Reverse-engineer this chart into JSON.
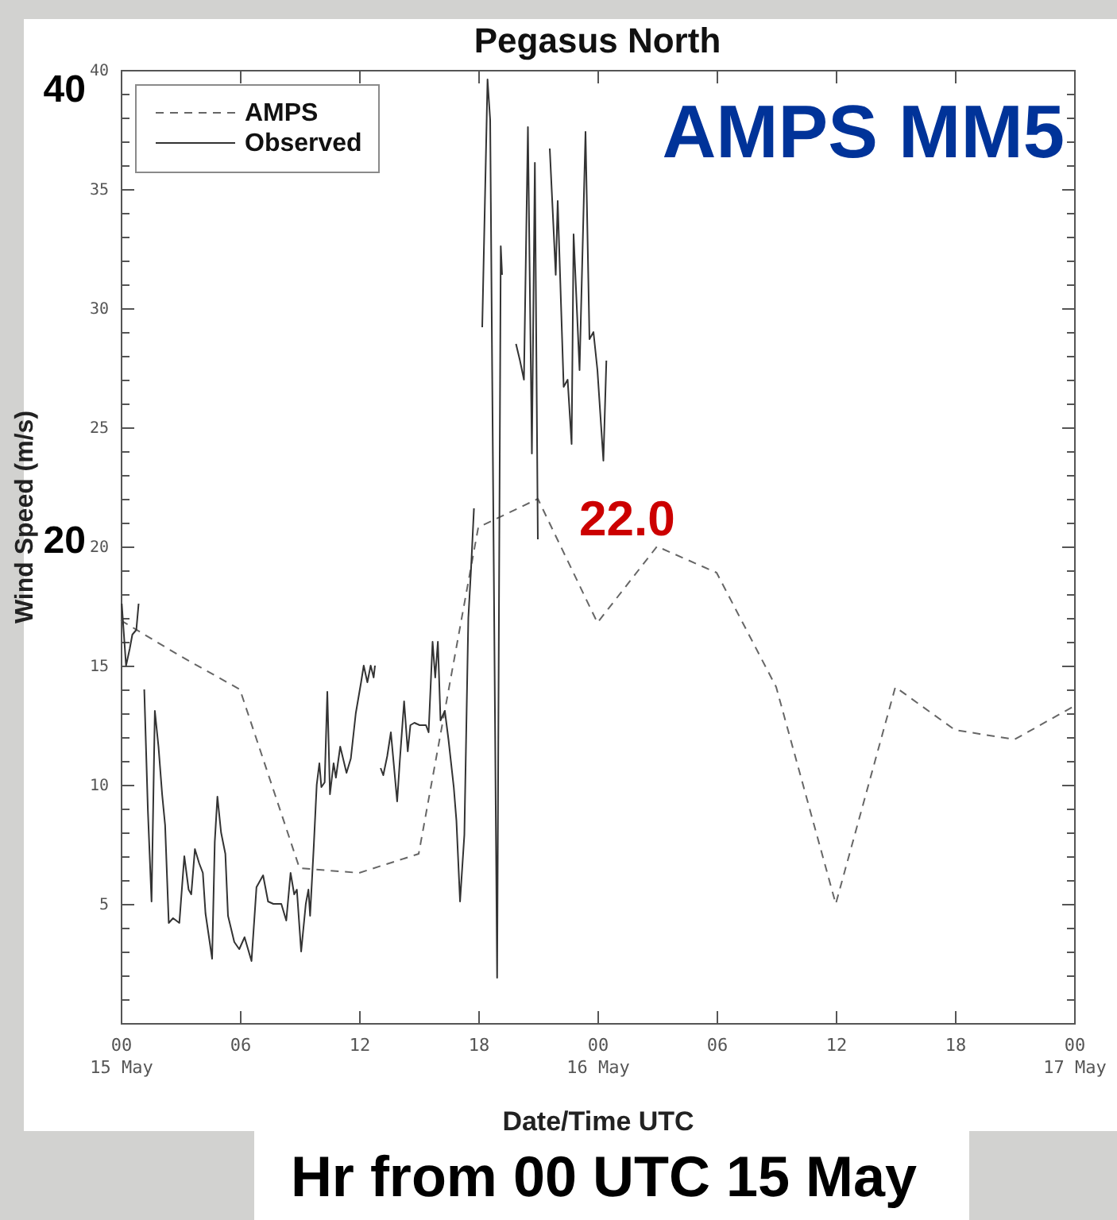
{
  "chart_data": {
    "type": "line",
    "title": "Pegasus North",
    "xlabel": "Date/Time UTC",
    "ylabel": "Wind Speed (m/s)",
    "xlim": [
      "--05-15T00:00",
      "--05-17T00:00"
    ],
    "xticks": [
      {
        "value": "--05-15T00:00",
        "label": "00\n15 May"
      },
      {
        "value": "--05-15T06:00",
        "label": "06"
      },
      {
        "value": "--05-15T12:00",
        "label": "12"
      },
      {
        "value": "--05-15T18:00",
        "label": "18"
      },
      {
        "value": "--05-16T00:00",
        "label": "00\n16 May"
      },
      {
        "value": "--05-16T06:00",
        "label": "06"
      },
      {
        "value": "--05-16T12:00",
        "label": "12"
      },
      {
        "value": "--05-16T18:00",
        "label": "18"
      },
      {
        "value": "--05-17T00:00",
        "label": "00\n17 May"
      }
    ],
    "ylim": [
      0,
      40
    ],
    "yticks": [
      {
        "value": 1,
        "label": null
      },
      {
        "value": 2,
        "label": null
      },
      {
        "value": 3,
        "label": null
      },
      {
        "value": 4,
        "label": null
      },
      5,
      {
        "value": 6,
        "label": null
      },
      {
        "value": 7,
        "label": null
      },
      {
        "value": 8,
        "label": null
      },
      {
        "value": 9,
        "label": null
      },
      10,
      {
        "value": 11,
        "label": null
      },
      {
        "value": 12,
        "label": null
      },
      {
        "value": 13,
        "label": null
      },
      {
        "value": 14,
        "label": null
      },
      15,
      {
        "value": 16,
        "label": null
      },
      {
        "value": 17,
        "label": null
      },
      {
        "value": 18,
        "label": null
      },
      {
        "value": 19,
        "label": null
      },
      20,
      {
        "value": 21,
        "label": null
      },
      {
        "value": 22,
        "label": null
      },
      {
        "value": 23,
        "label": null
      },
      {
        "value": 24,
        "label": null
      },
      25,
      {
        "value": 26,
        "label": null
      },
      {
        "value": 27,
        "label": null
      },
      {
        "value": 28,
        "label": null
      },
      {
        "value": 29,
        "label": null
      },
      30,
      {
        "value": 31,
        "label": null
      },
      {
        "value": 32,
        "label": null
      },
      {
        "value": 33,
        "label": null
      },
      {
        "value": 34,
        "label": null
      },
      35,
      {
        "value": 36,
        "label": null
      },
      {
        "value": 37,
        "label": null
      },
      {
        "value": 38,
        "label": null
      },
      {
        "value": 39,
        "label": null
      },
      40
    ],
    "legend": "top left",
    "series": [
      {
        "name": "AMPS",
        "color": "#666666",
        "line_style": "dashed",
        "x": [
          "--05-15T00:00",
          "--05-15T03:00",
          "--05-15T06:00",
          "--05-15T09:00",
          "--05-15T12:00",
          "--05-15T15:00",
          "--05-15T18:00",
          "--05-15T21:00",
          "--05-16T00:00",
          "--05-16T03:00",
          "--05-16T06:00",
          "--05-16T09:00",
          "--05-16T12:00",
          "--05-16T15:00",
          "--05-16T18:00",
          "--05-16T21:00",
          "--05-17T00:00"
        ],
        "values": [
          16.9,
          15.4,
          14.0,
          6.5,
          6.3,
          7.1,
          20.8,
          22.0,
          16.8,
          20.0,
          18.9,
          14.1,
          5.0,
          14.1,
          12.3,
          11.9,
          13.3
        ]
      },
      {
        "name": "Observed",
        "color": "#333333",
        "line_style": "solid",
        "x": [
          "--05-15T00:03",
          "--05-15T00:16",
          "--05-15T00:27",
          "--05-15T00:35",
          "--05-15T00:47",
          "--05-15T00:54",
          "--05-15T01:00",
          "--05-15T01:11",
          "--05-15T01:22",
          "--05-15T01:33",
          "--05-15T01:43",
          "--05-15T01:54",
          "--05-15T02:05",
          "--05-15T02:14",
          "--05-15T02:25",
          "--05-15T02:38",
          "--05-15T02:57",
          "--05-15T03:12",
          "--05-15T03:25",
          "--05-15T03:33",
          "--05-15T03:44",
          "--05-15T03:57",
          "--05-15T04:08",
          "--05-15T04:16",
          "--05-15T04:36",
          "--05-15T04:44",
          "--05-15T04:52",
          "--05-15T05:03",
          "--05-15T05:16",
          "--05-15T05:24",
          "--05-15T05:43",
          "--05-15T05:58",
          "--05-15T06:14",
          "--05-15T06:35",
          "--05-15T06:50",
          "--05-15T07:10",
          "--05-15T07:25",
          "--05-15T07:41",
          "--05-15T08:05",
          "--05-15T08:20",
          "--05-15T08:33",
          "--05-15T08:44",
          "--05-15T08:52",
          "--05-15T09:05",
          "--05-15T09:19",
          "--05-15T09:27",
          "--05-15T09:32",
          "--05-15T09:43",
          "--05-15T09:52",
          "--05-15T10:00",
          "--05-15T10:06",
          "--05-15T10:16",
          "--05-15T10:24",
          "--05-15T10:32",
          "--05-15T10:43",
          "--05-15T10:50",
          "--05-15T11:03",
          "--05-15T11:22",
          "--05-15T11:35",
          "--05-15T11:50",
          "--05-15T12:06",
          "--05-15T12:14",
          "--05-15T12:25",
          "--05-15T12:35",
          "--05-15T12:44",
          "--05-15T12:48",
          "--05-15T12:57",
          "--05-15T13:05",
          "--05-15T13:13",
          "--05-15T13:25",
          "--05-15T13:36",
          "--05-15T13:55",
          "--05-15T14:03",
          "--05-15T14:16",
          "--05-15T14:27",
          "--05-15T14:35",
          "--05-15T14:47",
          "--05-15T15:03",
          "--05-15T15:22",
          "--05-15T15:30",
          "--05-15T15:42",
          "--05-15T15:50",
          "--05-15T15:58",
          "--05-15T16:06",
          "--05-15T16:19",
          "--05-15T16:30",
          "--05-15T16:46",
          "--05-15T16:54",
          "--05-15T17:05",
          "--05-15T17:18",
          "--05-15T17:30",
          "--05-15T17:38",
          "--05-15T17:47",
          "--05-15T17:57",
          "--05-15T18:12",
          "--05-15T18:28",
          "--05-15T18:36",
          "--05-15T18:42",
          "--05-15T18:57",
          "--05-15T19:08",
          "--05-15T19:12",
          "--05-15T19:30",
          "--05-15T19:54",
          "--05-15T20:06",
          "--05-15T20:18",
          "--05-15T20:30",
          "--05-15T20:42",
          "--05-15T20:51",
          "--05-15T21:00",
          "--05-15T21:18",
          "--05-15T21:36",
          "--05-15T21:54",
          "--05-15T22:00",
          "--05-15T22:18",
          "--05-15T22:30",
          "--05-15T22:42",
          "--05-15T22:48",
          "--05-15T23:06",
          "--05-15T23:24",
          "--05-15T23:36",
          "--05-15T23:48",
          "--05-16T00:00",
          "--05-16T00:18",
          "--05-16T00:27"
        ],
        "values": [
          17.6,
          15.0,
          15.7,
          16.3,
          16.5,
          17.6,
          null,
          14.0,
          8.9,
          5.1,
          13.1,
          11.6,
          9.6,
          8.3,
          4.2,
          4.4,
          4.2,
          7.0,
          5.6,
          5.4,
          7.3,
          6.7,
          6.3,
          4.6,
          2.7,
          7.6,
          9.5,
          8.0,
          7.1,
          4.5,
          3.4,
          3.1,
          3.6,
          2.6,
          5.7,
          6.2,
          5.1,
          5.0,
          5.0,
          4.3,
          6.3,
          5.4,
          5.6,
          3.0,
          5.0,
          5.6,
          4.5,
          7.4,
          10.0,
          10.9,
          9.9,
          10.1,
          13.9,
          9.6,
          10.9,
          10.3,
          11.6,
          10.5,
          11.1,
          13.0,
          14.3,
          15.0,
          14.3,
          15.0,
          14.5,
          15.0,
          null,
          10.7,
          10.4,
          11.2,
          12.2,
          9.3,
          11.0,
          13.5,
          11.4,
          12.5,
          12.6,
          12.5,
          12.5,
          12.2,
          16.0,
          14.5,
          16.0,
          12.7,
          13.1,
          11.9,
          9.9,
          8.5,
          5.1,
          7.9,
          17.0,
          19.0,
          21.6,
          null,
          29.2,
          39.6,
          37.9,
          27.4,
          1.9,
          32.6,
          31.4,
          null,
          28.5,
          27.8,
          27.0,
          37.6,
          23.9,
          36.1,
          20.3,
          null,
          36.7,
          31.4,
          34.5,
          26.7,
          27.0,
          24.3,
          33.1,
          27.4,
          37.4,
          28.7,
          29.0,
          27.4,
          23.6,
          27.8
        ]
      }
    ],
    "annotations": [
      "AMPS MM5",
      {
        "text": "22.0",
        "x": "--05-15T21:00",
        "y": 22.0
      },
      "40",
      "20",
      "Hr from 00 UTC 15 May"
    ]
  }
}
